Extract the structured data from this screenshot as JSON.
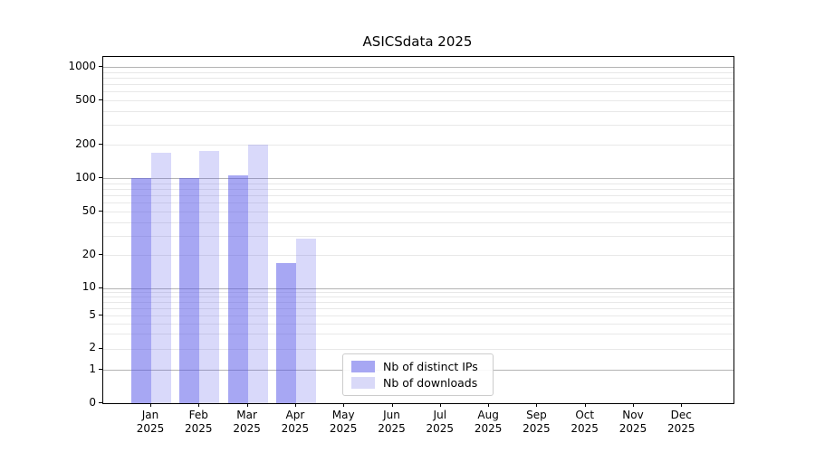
{
  "chart_data": {
    "type": "bar",
    "title": "ASICSdata 2025",
    "x_axis": {
      "months": [
        "Jan",
        "Feb",
        "Mar",
        "Apr",
        "May",
        "Jun",
        "Jul",
        "Aug",
        "Sep",
        "Oct",
        "Nov",
        "Dec"
      ],
      "year": "2025"
    },
    "y_axis": {
      "scale": "symlog",
      "ticks": [
        0,
        1,
        2,
        5,
        10,
        20,
        50,
        100,
        200,
        500,
        1000
      ],
      "major_gridlines": [
        1,
        10,
        100,
        1000
      ],
      "ylim": [
        0,
        1000
      ]
    },
    "series": [
      {
        "name": "Nb of distinct IPs",
        "fill": "#5050e8",
        "opacity": 0.5,
        "swatch_color": "#a7a7f3",
        "values": [
          100,
          100,
          105,
          17,
          0,
          0,
          0,
          0,
          0,
          0,
          0,
          0
        ]
      },
      {
        "name": "Nb of downloads",
        "fill": "#5050e8",
        "opacity": 0.22,
        "swatch_color": "#d9d9f8",
        "values": [
          170,
          175,
          200,
          28,
          0,
          0,
          0,
          0,
          0,
          0,
          0,
          0
        ]
      }
    ],
    "colors": {
      "grid_major": "#b3b3b3",
      "grid_minor": "#e8e8e8",
      "spine": "#000000",
      "background": "#ffffff"
    },
    "legend": {
      "position": "lower center-left",
      "border_color": "#cccccc"
    },
    "grid": "both"
  }
}
